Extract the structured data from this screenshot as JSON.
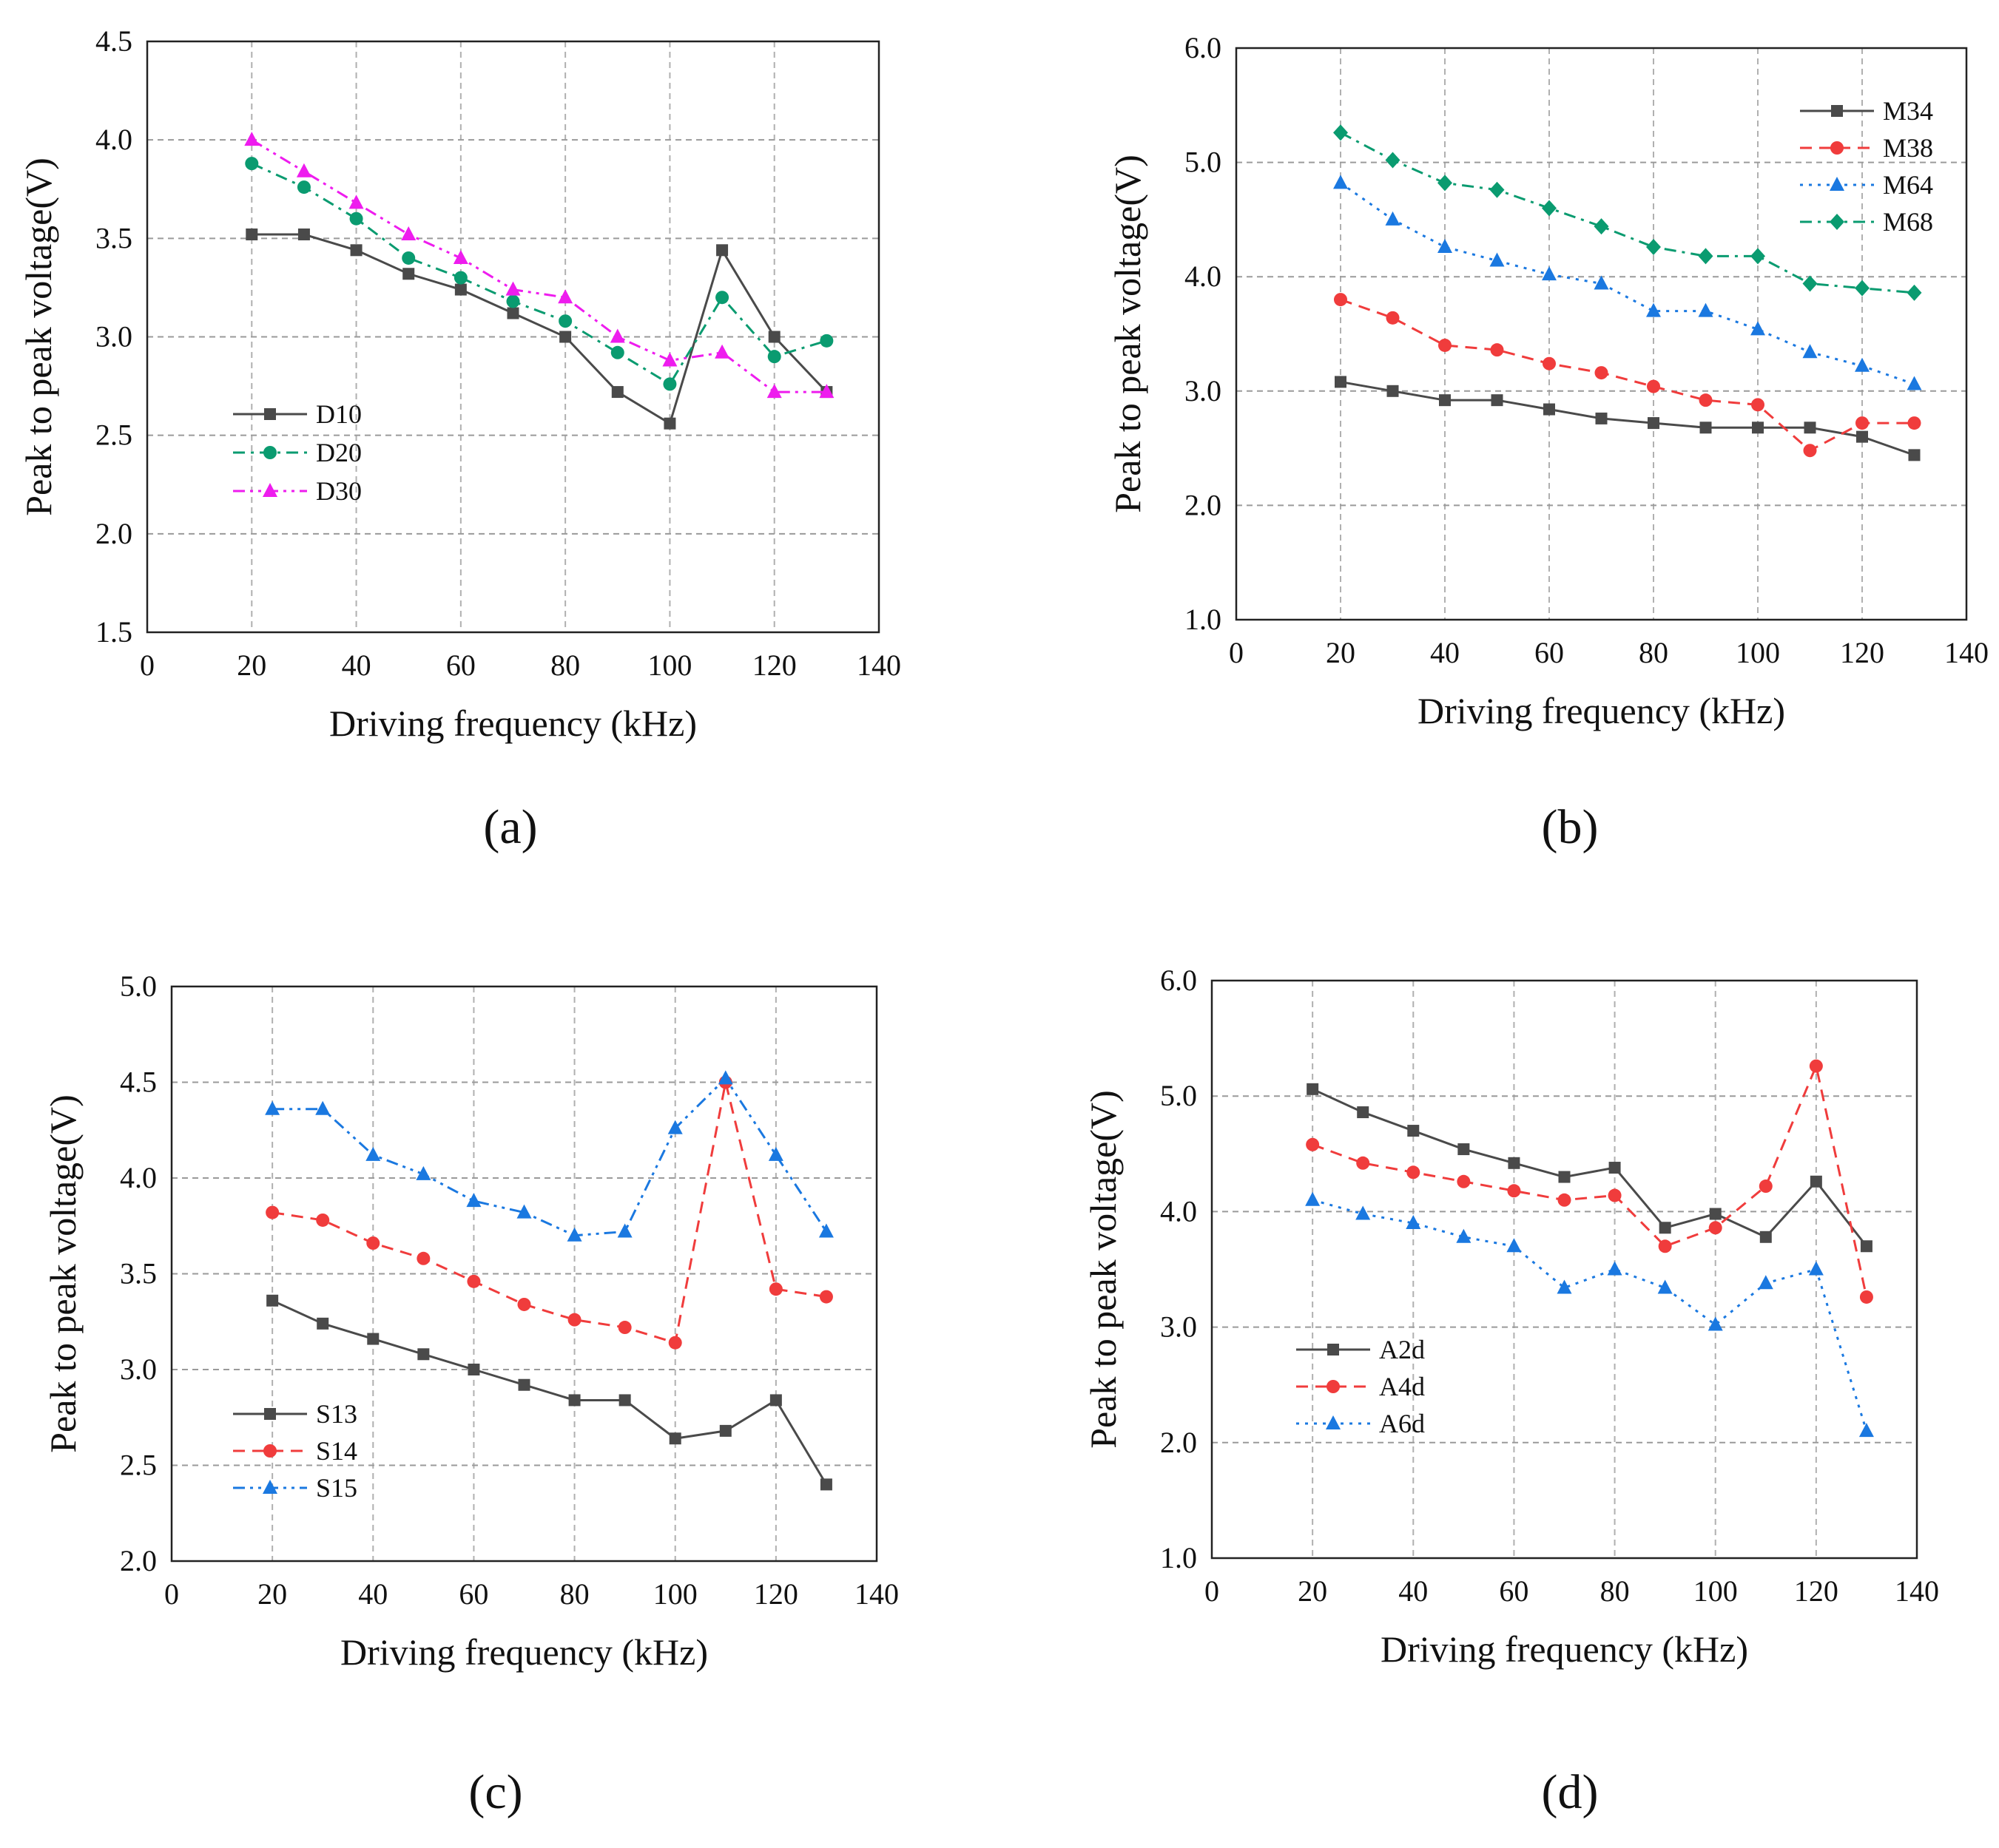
{
  "chart_data": [
    {
      "id": "a",
      "type": "line",
      "panel_label": "(a)",
      "xlabel": "Driving frequency (kHz)",
      "ylabel": "Peak to peak voltage(V)",
      "xlim": [
        0,
        140
      ],
      "ylim": [
        1.5,
        4.5
      ],
      "xticks": [
        0,
        20,
        40,
        60,
        80,
        100,
        120,
        140
      ],
      "yticks": [
        1.5,
        2.0,
        2.5,
        3.0,
        3.5,
        4.0,
        4.5
      ],
      "grid": true,
      "legend_position": "lower-left",
      "x": [
        20,
        30,
        40,
        50,
        60,
        70,
        80,
        90,
        100,
        110,
        120,
        130
      ],
      "series": [
        {
          "name": "D10",
          "color": "#4a4a4a",
          "marker": "square",
          "dash": "solid",
          "values": [
            3.52,
            3.52,
            3.44,
            3.32,
            3.24,
            3.12,
            3.0,
            2.72,
            2.56,
            3.44,
            3.0,
            2.72
          ]
        },
        {
          "name": "D20",
          "color": "#0a9b70",
          "marker": "circle",
          "dash": "dashdot",
          "values": [
            3.88,
            3.76,
            3.6,
            3.4,
            3.3,
            3.18,
            3.08,
            2.92,
            2.76,
            3.2,
            2.9,
            2.98
          ]
        },
        {
          "name": "D30",
          "color": "#ee1cee",
          "marker": "triangle",
          "dash": "dashdotdot",
          "values": [
            4.0,
            3.84,
            3.68,
            3.52,
            3.4,
            3.24,
            3.2,
            3.0,
            2.88,
            2.92,
            2.72,
            2.72
          ]
        }
      ]
    },
    {
      "id": "b",
      "type": "line",
      "panel_label": "(b)",
      "xlabel": "Driving frequency (kHz)",
      "ylabel": "Peak to peak voltage(V)",
      "xlim": [
        0,
        140
      ],
      "ylim": [
        1.0,
        6.0
      ],
      "xticks": [
        0,
        20,
        40,
        60,
        80,
        100,
        120,
        140
      ],
      "yticks": [
        1.0,
        2.0,
        3.0,
        4.0,
        5.0,
        6.0
      ],
      "grid": true,
      "legend_position": "top-right",
      "x": [
        20,
        30,
        40,
        50,
        60,
        70,
        80,
        90,
        100,
        110,
        120,
        130
      ],
      "series": [
        {
          "name": "M34",
          "color": "#4a4a4a",
          "marker": "square",
          "dash": "solid",
          "values": [
            3.08,
            3.0,
            2.92,
            2.92,
            2.84,
            2.76,
            2.72,
            2.68,
            2.68,
            2.68,
            2.6,
            2.44
          ]
        },
        {
          "name": "M38",
          "color": "#f03c3c",
          "marker": "circle",
          "dash": "dashed",
          "values": [
            3.8,
            3.64,
            3.4,
            3.36,
            3.24,
            3.16,
            3.04,
            2.92,
            2.88,
            2.48,
            2.72,
            2.72
          ]
        },
        {
          "name": "M64",
          "color": "#1a78e0",
          "marker": "triangle",
          "dash": "dotted",
          "values": [
            4.82,
            4.5,
            4.26,
            4.14,
            4.02,
            3.94,
            3.7,
            3.7,
            3.54,
            3.34,
            3.22,
            3.06
          ]
        },
        {
          "name": "M68",
          "color": "#0a9b70",
          "marker": "diamond",
          "dash": "dashdot",
          "values": [
            5.26,
            5.02,
            4.82,
            4.76,
            4.6,
            4.44,
            4.26,
            4.18,
            4.18,
            3.94,
            3.9,
            3.86
          ]
        }
      ]
    },
    {
      "id": "c",
      "type": "line",
      "panel_label": "(c)",
      "xlabel": "Driving frequency (kHz)",
      "ylabel": "Peak to peak voltage(V)",
      "xlim": [
        0,
        140
      ],
      "ylim": [
        2.0,
        5.0
      ],
      "xticks": [
        0,
        20,
        40,
        60,
        80,
        100,
        120,
        140
      ],
      "yticks": [
        2.0,
        2.5,
        3.0,
        3.5,
        4.0,
        4.5,
        5.0
      ],
      "grid": true,
      "legend_position": "lower-left",
      "x": [
        20,
        30,
        40,
        50,
        60,
        70,
        80,
        90,
        100,
        110,
        120,
        130
      ],
      "series": [
        {
          "name": "S13",
          "color": "#4a4a4a",
          "marker": "square",
          "dash": "solid",
          "values": [
            3.36,
            3.24,
            3.16,
            3.08,
            3.0,
            2.92,
            2.84,
            2.84,
            2.64,
            2.68,
            2.84,
            2.4
          ]
        },
        {
          "name": "S14",
          "color": "#f03c3c",
          "marker": "circle",
          "dash": "dashed",
          "values": [
            3.82,
            3.78,
            3.66,
            3.58,
            3.46,
            3.34,
            3.26,
            3.22,
            3.14,
            4.5,
            3.42,
            3.38
          ]
        },
        {
          "name": "S15",
          "color": "#1a78e0",
          "marker": "triangle",
          "dash": "dashdotdot",
          "values": [
            4.36,
            4.36,
            4.12,
            4.02,
            3.88,
            3.82,
            3.7,
            3.72,
            4.26,
            4.52,
            4.12,
            3.72
          ]
        }
      ]
    },
    {
      "id": "d",
      "type": "line",
      "panel_label": "(d)",
      "xlabel": "Driving frequency (kHz)",
      "ylabel": "Peak to peak voltage(V)",
      "xlim": [
        0,
        140
      ],
      "ylim": [
        1.0,
        6.0
      ],
      "xticks": [
        0,
        20,
        40,
        60,
        80,
        100,
        120,
        140
      ],
      "yticks": [
        1.0,
        2.0,
        3.0,
        4.0,
        5.0,
        6.0
      ],
      "grid": true,
      "legend_position": "lower-left",
      "x": [
        20,
        30,
        40,
        50,
        60,
        70,
        80,
        90,
        100,
        110,
        120,
        130
      ],
      "series": [
        {
          "name": "A2d",
          "color": "#4a4a4a",
          "marker": "square",
          "dash": "solid",
          "values": [
            5.06,
            4.86,
            4.7,
            4.54,
            4.42,
            4.3,
            4.38,
            3.86,
            3.98,
            3.78,
            4.26,
            3.7
          ]
        },
        {
          "name": "A4d",
          "color": "#f03c3c",
          "marker": "circle",
          "dash": "dashed",
          "values": [
            4.58,
            4.42,
            4.34,
            4.26,
            4.18,
            4.1,
            4.14,
            3.7,
            3.86,
            4.22,
            5.26,
            3.26
          ]
        },
        {
          "name": "A6d",
          "color": "#1a78e0",
          "marker": "triangle",
          "dash": "dotted",
          "values": [
            4.1,
            3.98,
            3.9,
            3.78,
            3.7,
            3.34,
            3.5,
            3.34,
            3.02,
            3.38,
            3.5,
            2.1
          ]
        }
      ]
    }
  ]
}
